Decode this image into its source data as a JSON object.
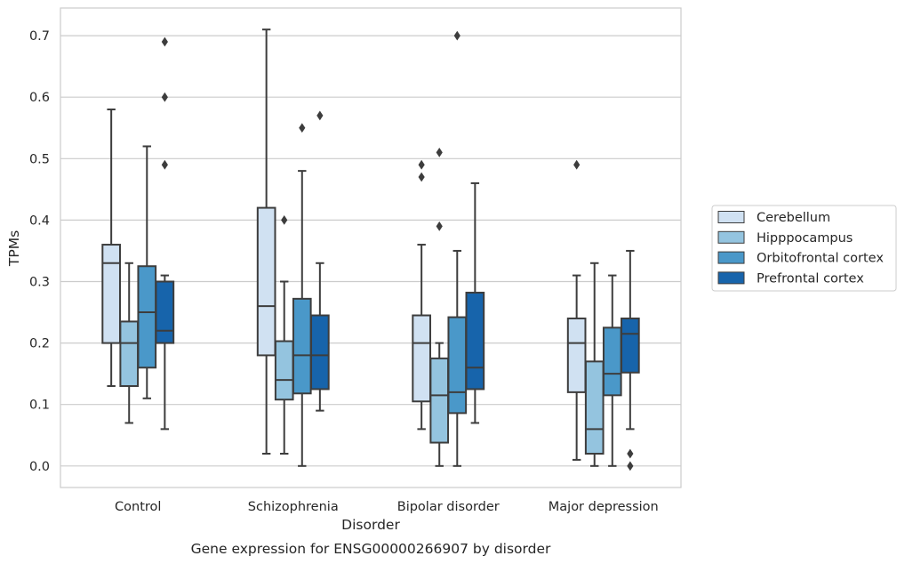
{
  "chart_data": {
    "type": "box",
    "caption": "Gene expression for ENSG00000266907 by disorder",
    "xlabel": "Disorder",
    "ylabel": "TPMs",
    "ylim": [
      -0.035,
      0.745
    ],
    "yticks": [
      "0.0",
      "0.1",
      "0.2",
      "0.3",
      "0.4",
      "0.5",
      "0.6",
      "0.7"
    ],
    "grid": true,
    "legend_position": "right",
    "categories": [
      "Control",
      "Schizophrenia",
      "Bipolar disorder",
      "Major depression"
    ],
    "series": [
      {
        "name": "Cerebellum",
        "color": "#d0e1f2",
        "boxes": [
          {
            "whisker_low": 0.13,
            "q1": 0.2,
            "median": 0.33,
            "q3": 0.36,
            "whisker_high": 0.58,
            "outliers": []
          },
          {
            "whisker_low": 0.02,
            "q1": 0.18,
            "median": 0.26,
            "q3": 0.42,
            "whisker_high": 0.71,
            "outliers": []
          },
          {
            "whisker_low": 0.06,
            "q1": 0.105,
            "median": 0.2,
            "q3": 0.245,
            "whisker_high": 0.36,
            "outliers": [
              0.47,
              0.49
            ]
          },
          {
            "whisker_low": 0.01,
            "q1": 0.12,
            "median": 0.2,
            "q3": 0.24,
            "whisker_high": 0.31,
            "outliers": [
              0.49
            ]
          }
        ]
      },
      {
        "name": "Hipppocampus",
        "color": "#94c4df",
        "boxes": [
          {
            "whisker_low": 0.07,
            "q1": 0.13,
            "median": 0.2,
            "q3": 0.235,
            "whisker_high": 0.33,
            "outliers": []
          },
          {
            "whisker_low": 0.02,
            "q1": 0.108,
            "median": 0.14,
            "q3": 0.203,
            "whisker_high": 0.3,
            "outliers": [
              0.4
            ]
          },
          {
            "whisker_low": 0.0,
            "q1": 0.038,
            "median": 0.115,
            "q3": 0.175,
            "whisker_high": 0.2,
            "outliers": [
              0.39,
              0.51
            ]
          },
          {
            "whisker_low": 0.0,
            "q1": 0.02,
            "median": 0.06,
            "q3": 0.17,
            "whisker_high": 0.33,
            "outliers": []
          }
        ]
      },
      {
        "name": "Orbitofrontal cortex",
        "color": "#4a98c9",
        "boxes": [
          {
            "whisker_low": 0.11,
            "q1": 0.16,
            "median": 0.25,
            "q3": 0.325,
            "whisker_high": 0.52,
            "outliers": []
          },
          {
            "whisker_low": 0.0,
            "q1": 0.118,
            "median": 0.18,
            "q3": 0.272,
            "whisker_high": 0.48,
            "outliers": [
              0.55
            ]
          },
          {
            "whisker_low": 0.0,
            "q1": 0.086,
            "median": 0.12,
            "q3": 0.242,
            "whisker_high": 0.35,
            "outliers": [
              0.7
            ]
          },
          {
            "whisker_low": 0.0,
            "q1": 0.115,
            "median": 0.15,
            "q3": 0.225,
            "whisker_high": 0.31,
            "outliers": []
          }
        ]
      },
      {
        "name": "Prefrontal cortex",
        "color": "#1764ab",
        "boxes": [
          {
            "whisker_low": 0.06,
            "q1": 0.2,
            "median": 0.22,
            "q3": 0.3,
            "whisker_high": 0.31,
            "outliers": [
              0.49,
              0.6,
              0.69
            ]
          },
          {
            "whisker_low": 0.09,
            "q1": 0.125,
            "median": 0.18,
            "q3": 0.245,
            "whisker_high": 0.33,
            "outliers": [
              0.57
            ]
          },
          {
            "whisker_low": 0.07,
            "q1": 0.125,
            "median": 0.16,
            "q3": 0.282,
            "whisker_high": 0.46,
            "outliers": []
          },
          {
            "whisker_low": 0.06,
            "q1": 0.152,
            "median": 0.215,
            "q3": 0.24,
            "whisker_high": 0.35,
            "outliers": [
              0.0,
              0.02
            ]
          }
        ]
      }
    ]
  }
}
